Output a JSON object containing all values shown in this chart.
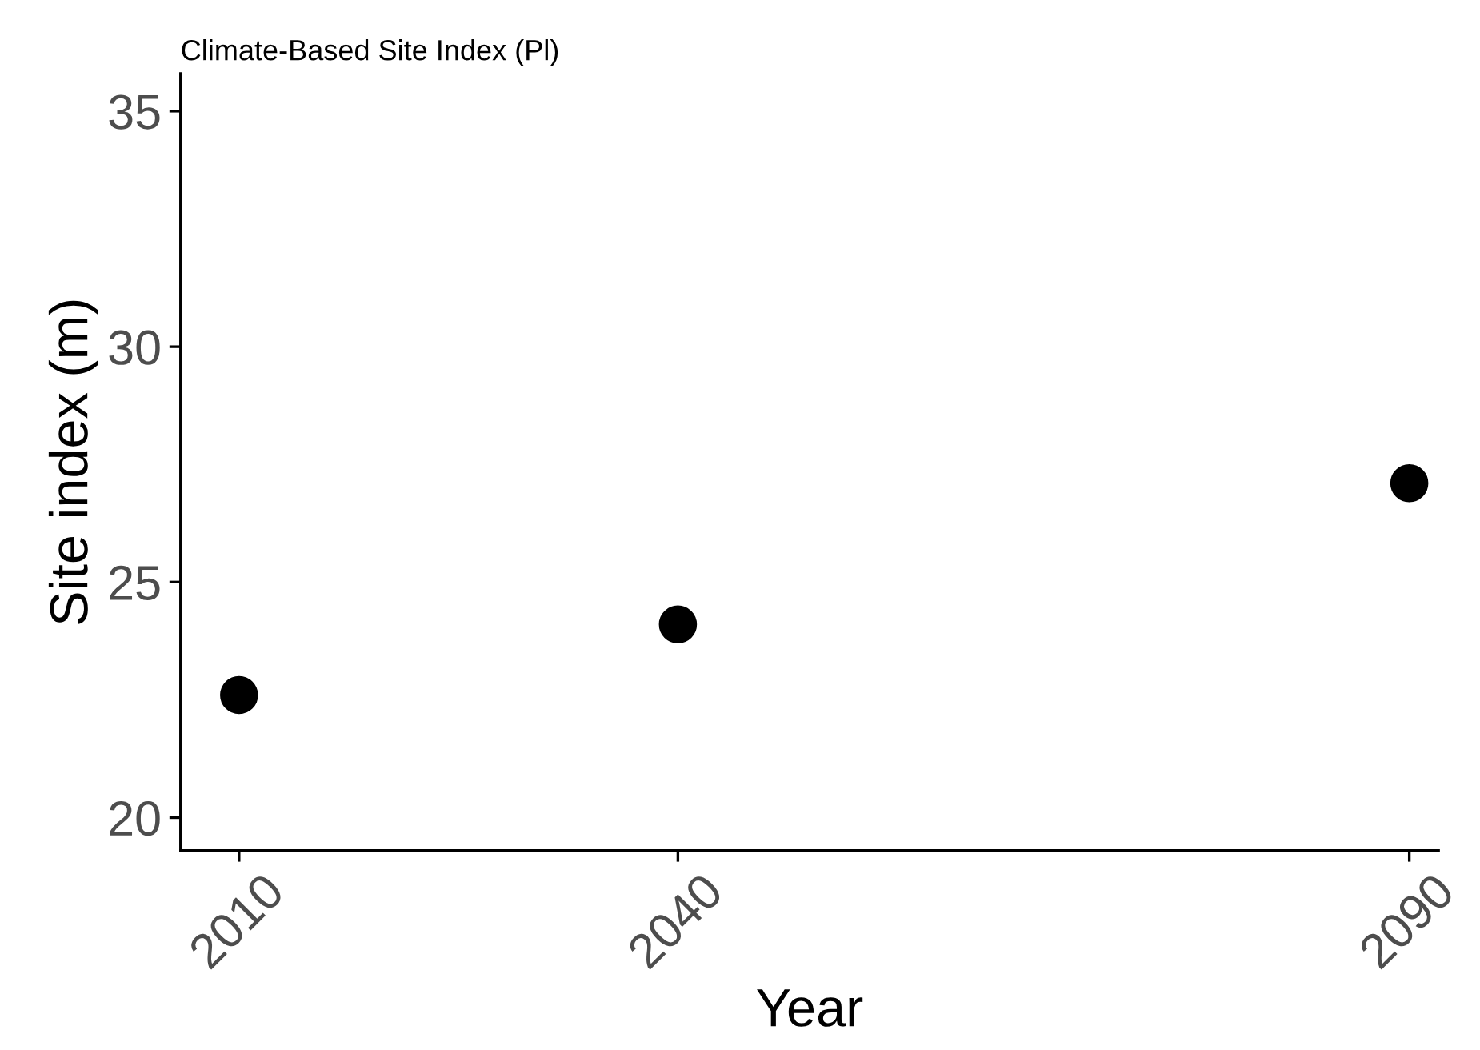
{
  "chart_data": {
    "type": "scatter",
    "title": "Climate-Based Site Index (Pl)",
    "xlabel": "Year",
    "ylabel": "Site index (m)",
    "x": [
      2010,
      2040,
      2090
    ],
    "series": [
      {
        "color": "#000000",
        "values": [
          22.6,
          24.1,
          27.1
        ]
      }
    ],
    "xlim": [
      2006,
      2092
    ],
    "xticks": [
      2010,
      2040,
      2090
    ],
    "ylim": [
      19.3,
      35.8
    ],
    "yticks": [
      20,
      25,
      30,
      35
    ],
    "grid": false,
    "legend": false,
    "marker": "circle"
  }
}
